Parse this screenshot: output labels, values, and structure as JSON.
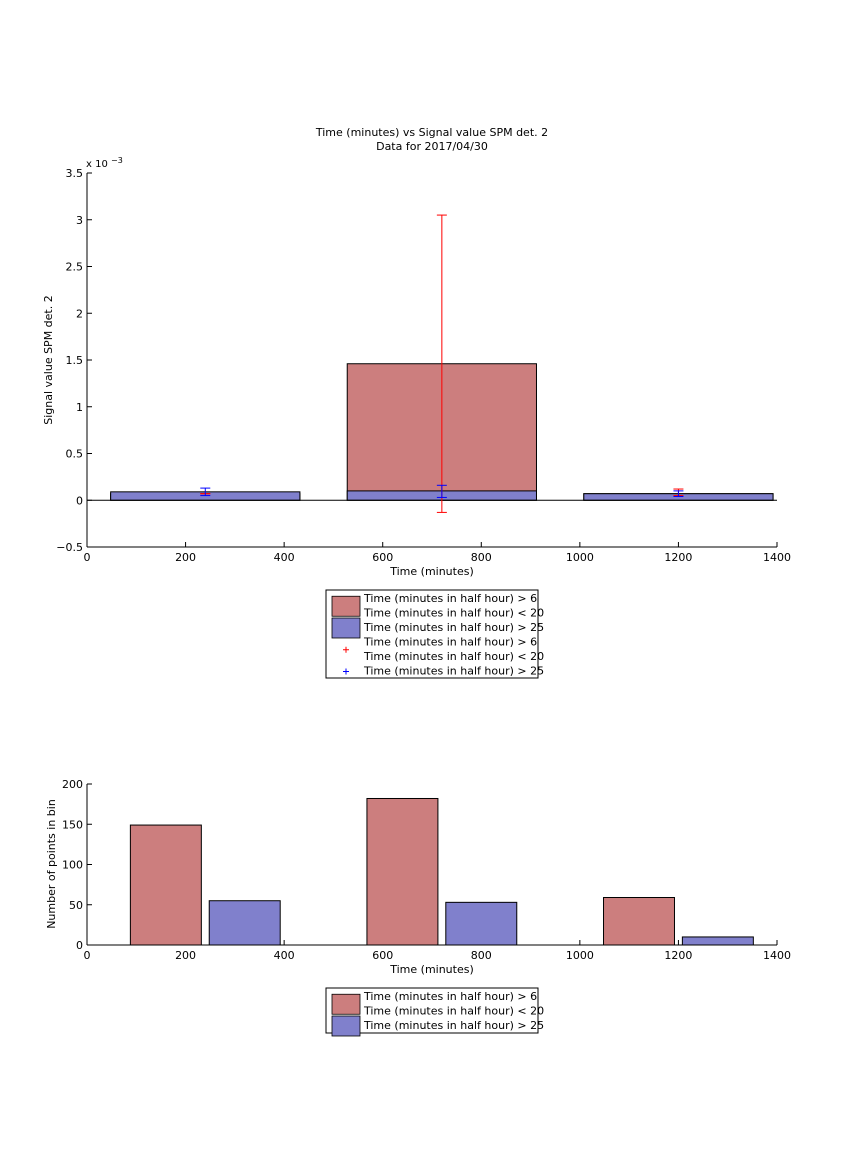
{
  "colors": {
    "red_bar": "#cc7e7e",
    "blue_bar": "#8080cc",
    "red_err": "#ff0000",
    "blue_err": "#0000ff",
    "axis": "#000000"
  },
  "chart_data": [
    {
      "type": "bar",
      "title": "Time (minutes) vs Signal value SPM det. 2",
      "subtitle": "Data for 2017/04/30",
      "xlabel": "Time (minutes)",
      "ylabel": "Signal value SPM det. 2",
      "exponent_label": "x 10",
      "exponent_power": "−3",
      "xlim": [
        0,
        1400
      ],
      "ylim": [
        -0.5,
        3.5
      ],
      "xticks": [
        "0",
        "200",
        "400",
        "600",
        "800",
        "1000",
        "1200",
        "1400"
      ],
      "yticks": [
        "−0.5",
        "0",
        "0.5",
        "1",
        "1.5",
        "2",
        "2.5",
        "3",
        "3.5"
      ],
      "series": [
        {
          "name": "Time (minutes in half hour) > 6\nTime (minutes in half hour) < 20",
          "x": [
            240,
            720,
            1200
          ],
          "values": [
            0.07,
            1.46,
            0.07
          ],
          "error_low": [
            0.07,
            -0.13,
            0.05
          ],
          "error_high": [
            0.07,
            3.05,
            0.12
          ]
        },
        {
          "name": "Time (minutes in half hour) > 25",
          "x": [
            240,
            720,
            1200
          ],
          "values": [
            0.09,
            0.1,
            0.07
          ],
          "error_low": [
            0.05,
            0.03,
            0.04
          ],
          "error_high": [
            0.13,
            0.16,
            0.1
          ]
        }
      ],
      "bar_span": [
        [
          48,
          432
        ],
        [
          528,
          912
        ],
        [
          1008,
          1392
        ]
      ],
      "legend": {
        "placement": "below",
        "entries": [
          {
            "marker": "patch-red",
            "lines": [
              "Time (minutes in half hour) > 6",
              "Time (minutes in half hour) < 20"
            ]
          },
          {
            "marker": "patch-blue",
            "lines": [
              "Time (minutes in half hour) > 25"
            ]
          },
          {
            "marker": "plus-red",
            "lines": [
              "Time (minutes in half hour) > 6",
              "Time (minutes in half hour) < 20"
            ]
          },
          {
            "marker": "plus-blue",
            "lines": [
              "Time (minutes in half hour) > 25"
            ]
          }
        ]
      },
      "grid": false
    },
    {
      "type": "bar",
      "xlabel": "Time (minutes)",
      "ylabel": "Number of points in bin",
      "xlim": [
        0,
        1400
      ],
      "ylim": [
        0,
        200
      ],
      "xticks": [
        "0",
        "200",
        "400",
        "600",
        "800",
        "1000",
        "1200",
        "1400"
      ],
      "yticks": [
        "0",
        "50",
        "100",
        "150",
        "200"
      ],
      "series": [
        {
          "name": "Time (minutes in half hour) > 6\nTime (minutes in half hour) < 20",
          "x": [
            160,
            640,
            1120
          ],
          "values": [
            149,
            182,
            59
          ]
        },
        {
          "name": "Time (minutes in half hour) > 25",
          "x": [
            320,
            800,
            1280
          ],
          "values": [
            55,
            53,
            10
          ]
        }
      ],
      "bar_width": 144,
      "legend": {
        "placement": "below",
        "entries": [
          {
            "marker": "patch-red",
            "lines": [
              "Time (minutes in half hour) > 6",
              "Time (minutes in half hour) < 20"
            ]
          },
          {
            "marker": "patch-blue",
            "lines": [
              "Time (minutes in half hour) > 25"
            ]
          }
        ]
      },
      "grid": false
    }
  ]
}
